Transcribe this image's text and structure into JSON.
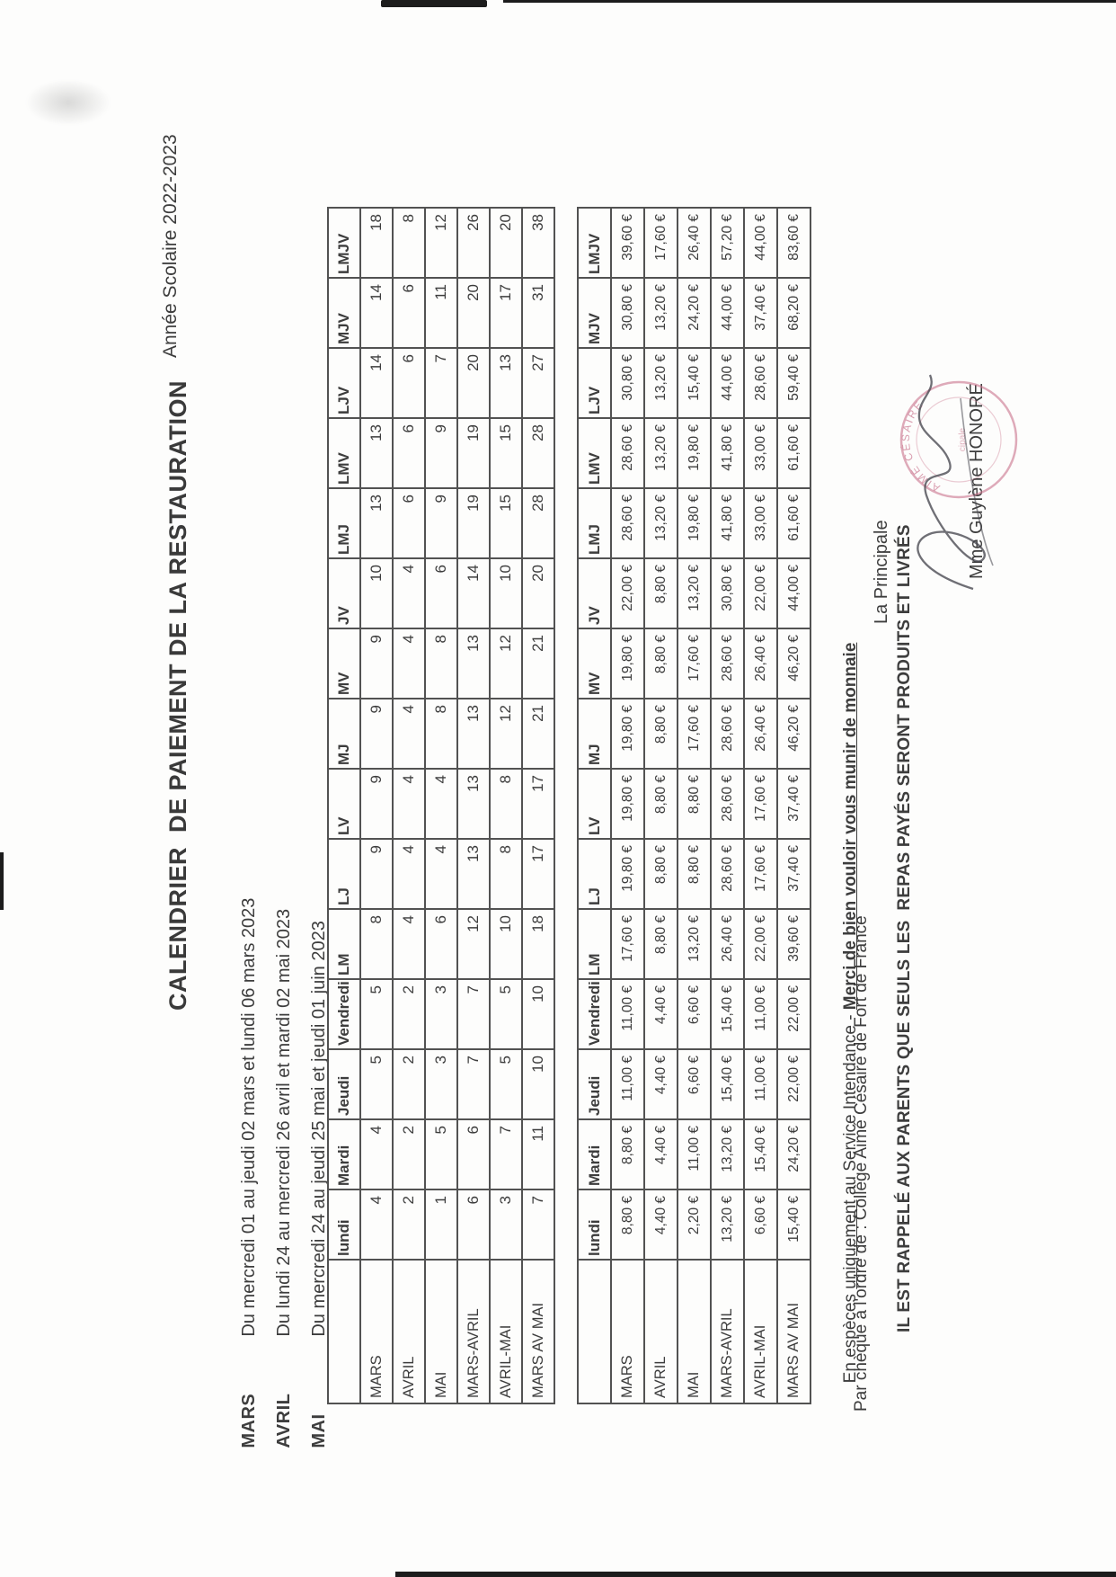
{
  "page": {
    "title": "CALENDRIER  DE PAIEMENT DE LA RESTAURATION",
    "school_year": "Année Scolaire 2022-2023"
  },
  "periods": [
    {
      "label": "MARS",
      "dates": "Du mercredi 01 au jeudi 02 mars et lundi 06 mars 2023"
    },
    {
      "label": "AVRIL",
      "dates": "Du lundi 24 au mercredi 26 avril et mardi 02 mai 2023"
    },
    {
      "label": "MAI",
      "dates": "Du mercredi 24 au jeudi 25 mai et jeudi 01 juin 2023"
    }
  ],
  "days_table": {
    "columns": [
      "lundi",
      "Mardi",
      "Jeudi",
      "Vendredi",
      "LM",
      "LJ",
      "LV",
      "MJ",
      "MV",
      "JV",
      "LMJ",
      "LMV",
      "LJV",
      "MJV",
      "LMJV"
    ],
    "rows": [
      {
        "label": "MARS",
        "values": [
          "4",
          "4",
          "5",
          "5",
          "8",
          "9",
          "9",
          "9",
          "9",
          "10",
          "13",
          "13",
          "14",
          "14",
          "18"
        ]
      },
      {
        "label": "AVRIL",
        "values": [
          "2",
          "2",
          "2",
          "2",
          "4",
          "4",
          "4",
          "4",
          "4",
          "4",
          "6",
          "6",
          "6",
          "6",
          "8"
        ]
      },
      {
        "label": "MAI",
        "values": [
          "1",
          "5",
          "3",
          "3",
          "6",
          "4",
          "4",
          "8",
          "8",
          "6",
          "9",
          "9",
          "7",
          "11",
          "12"
        ]
      },
      {
        "label": "MARS-AVRIL",
        "values": [
          "6",
          "6",
          "7",
          "7",
          "12",
          "13",
          "13",
          "13",
          "13",
          "14",
          "19",
          "19",
          "20",
          "20",
          "26"
        ]
      },
      {
        "label": "AVRIL-MAI",
        "values": [
          "3",
          "7",
          "5",
          "5",
          "10",
          "8",
          "8",
          "12",
          "12",
          "10",
          "15",
          "15",
          "13",
          "17",
          "20"
        ]
      },
      {
        "label": "MARS AV MAI",
        "values": [
          "7",
          "11",
          "10",
          "10",
          "18",
          "17",
          "17",
          "21",
          "21",
          "20",
          "28",
          "28",
          "27",
          "31",
          "38"
        ]
      }
    ]
  },
  "price_table": {
    "columns": [
      "lundi",
      "Mardi",
      "Jeudi",
      "Vendredi",
      "LM",
      "LJ",
      "LV",
      "MJ",
      "MV",
      "JV",
      "LMJ",
      "LMV",
      "LJV",
      "MJV",
      "LMJV"
    ],
    "rows": [
      {
        "label": "MARS",
        "values": [
          "8,80 €",
          "8,80 €",
          "11,00 €",
          "11,00 €",
          "17,60 €",
          "19,80 €",
          "19,80 €",
          "19,80 €",
          "19,80 €",
          "22,00 €",
          "28,60 €",
          "28,60 €",
          "30,80 €",
          "30,80 €",
          "39,60 €"
        ]
      },
      {
        "label": "AVRIL",
        "values": [
          "4,40 €",
          "4,40 €",
          "4,40 €",
          "4,40 €",
          "8,80 €",
          "8,80 €",
          "8,80 €",
          "8,80 €",
          "8,80 €",
          "8,80 €",
          "13,20 €",
          "13,20 €",
          "13,20 €",
          "13,20 €",
          "17,60 €"
        ]
      },
      {
        "label": "MAI",
        "values": [
          "2,20 €",
          "11,00 €",
          "6,60 €",
          "6,60 €",
          "13,20 €",
          "8,80 €",
          "8,80 €",
          "17,60 €",
          "17,60 €",
          "13,20 €",
          "19,80 €",
          "19,80 €",
          "15,40 €",
          "24,20 €",
          "26,40 €"
        ]
      },
      {
        "label": "MARS-AVRIL",
        "values": [
          "13,20 €",
          "13,20 €",
          "15,40 €",
          "15,40 €",
          "26,40 €",
          "28,60 €",
          "28,60 €",
          "28,60 €",
          "28,60 €",
          "30,80 €",
          "41,80 €",
          "41,80 €",
          "44,00 €",
          "44,00 €",
          "57,20 €"
        ]
      },
      {
        "label": "AVRIL-MAI",
        "values": [
          "6,60 €",
          "15,40 €",
          "11,00 €",
          "11,00 €",
          "22,00 €",
          "17,60 €",
          "17,60 €",
          "26,40 €",
          "26,40 €",
          "22,00 €",
          "33,00 €",
          "33,00 €",
          "28,60 €",
          "37,40 €",
          "44,00 €"
        ]
      },
      {
        "label": "MARS AV MAI",
        "values": [
          "15,40 €",
          "24,20 €",
          "22,00 €",
          "22,00 €",
          "39,60 €",
          "37,40 €",
          "37,40 €",
          "46,20 €",
          "46,20 €",
          "44,00 €",
          "61,60 €",
          "61,60 €",
          "59,40 €",
          "68,20 €",
          "83,60 €"
        ]
      }
    ]
  },
  "notes": {
    "cash_prefix": "En espèces ",
    "cash_underlined": "uniquement",
    "cash_middle": " au Service Intendance - ",
    "cash_emphasis": "Merci de bien vouloir vous munir de monnaie",
    "cheque": "Par chèque à l'ordre de : Collège Aimé Césaire de Fort de France",
    "warning": "IL EST RAPPELÉ AUX PARENTS QUE SEULS LES  REPAS PAYÉS SERONT PRODUITS ET LIVRÉS"
  },
  "signature": {
    "role": "La Principale",
    "name": "Mme Guylène HONORÉ",
    "stamp_arc_text": "AIMÉ CÉSAIRE",
    "stamp_inner_text": "cipale",
    "stamp_color": "#c9738c"
  }
}
